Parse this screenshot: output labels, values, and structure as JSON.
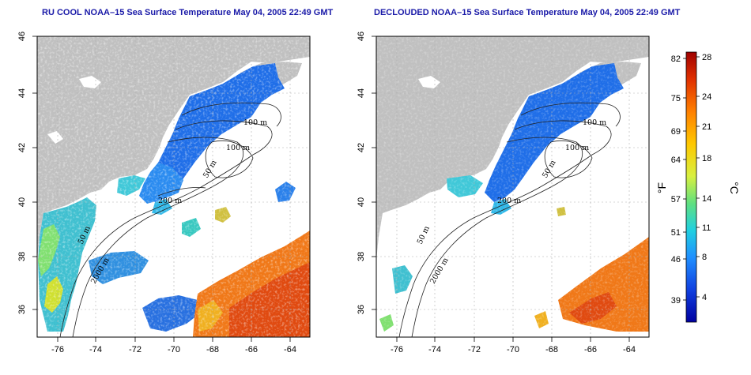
{
  "panels": [
    {
      "title": "RU COOL NOAA–15 Sea Surface Temperature May 04, 2005 22:49 GMT"
    },
    {
      "title": "DECLOUDED NOAA–15 Sea Surface Temperature May 04, 2005 22:49 GMT"
    }
  ],
  "map": {
    "lon_ticks": [
      "-76",
      "-74",
      "-72",
      "-70",
      "-68",
      "-66",
      "-64"
    ],
    "lat_ticks": [
      "36",
      "38",
      "40",
      "42",
      "44",
      "46"
    ],
    "contours": [
      "100 m",
      "100 m",
      "50 m",
      "200 m",
      "50 m",
      "2000 m"
    ],
    "colors": {
      "land": "#c0c0c0",
      "ocean_nodata": "#ffffff",
      "title": "#1a1aa8",
      "grid": "#bdbdbd"
    }
  },
  "colorbar": {
    "fahrenheit_ticks": [
      "82",
      "75",
      "69",
      "64",
      "57",
      "51",
      "46",
      "39"
    ],
    "celsius_ticks": [
      "28",
      "24",
      "21",
      "18",
      "14",
      "11",
      "8",
      "4"
    ],
    "fahrenheit_unit": "°F",
    "celsius_unit": "°C",
    "gradient_top_to_bottom": [
      "#a00000",
      "#e03000",
      "#ff8000",
      "#ffc800",
      "#d8f040",
      "#60e080",
      "#20d0e0",
      "#2090ff",
      "#1040e0",
      "#0000a0"
    ]
  }
}
